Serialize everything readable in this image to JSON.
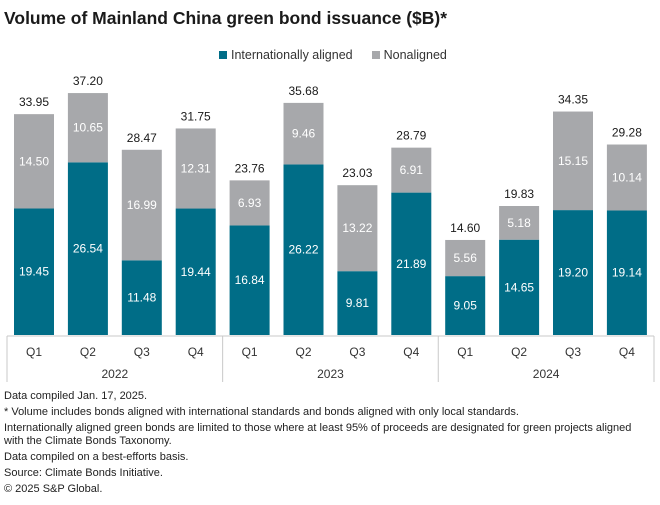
{
  "colors": {
    "aligned": "#006d87",
    "nonaligned": "#a7a8ab",
    "axis": "#c8c8c8",
    "label_on_bar": "#ffffff",
    "total_label": "#1a1a1a"
  },
  "chart_data": {
    "type": "bar",
    "stacked": true,
    "title": "Volume of Mainland China green bond issuance ($B)*",
    "xlabel": "",
    "ylabel": "",
    "ylim": [
      0,
      37.2
    ],
    "grid": false,
    "legend_position": "top-center",
    "categories": [
      "Q1",
      "Q2",
      "Q3",
      "Q4",
      "Q1",
      "Q2",
      "Q3",
      "Q4",
      "Q1",
      "Q2",
      "Q3",
      "Q4"
    ],
    "groups": [
      {
        "label": "2022",
        "categories": [
          "Q1",
          "Q2",
          "Q3",
          "Q4"
        ]
      },
      {
        "label": "2023",
        "categories": [
          "Q1",
          "Q2",
          "Q3",
          "Q4"
        ]
      },
      {
        "label": "2024",
        "categories": [
          "Q1",
          "Q2",
          "Q3",
          "Q4"
        ]
      }
    ],
    "series": [
      {
        "name": "Internationally aligned",
        "color": "#006d87",
        "values": [
          19.45,
          26.54,
          11.48,
          19.44,
          16.84,
          26.22,
          9.81,
          21.89,
          9.05,
          14.65,
          19.2,
          19.14
        ]
      },
      {
        "name": "Nonaligned",
        "color": "#a7a8ab",
        "values": [
          14.5,
          10.65,
          16.99,
          12.31,
          6.93,
          9.46,
          13.22,
          6.91,
          5.56,
          5.18,
          15.15,
          10.14
        ]
      }
    ],
    "totals": [
      33.95,
      37.2,
      28.47,
      31.75,
      23.76,
      35.68,
      23.03,
      28.79,
      14.6,
      19.83,
      34.35,
      29.28
    ]
  },
  "legend": {
    "items": [
      {
        "label": "Internationally aligned",
        "color": "#006d87"
      },
      {
        "label": "Nonaligned",
        "color": "#a7a8ab"
      }
    ]
  },
  "footnotes": [
    "Data compiled Jan. 17, 2025.",
    "* Volume includes bonds aligned with international standards and bonds aligned with only local standards.",
    "Internationally aligned green bonds are limited to those where at least 95% of proceeds are designated for green projects aligned with the Climate Bonds Taxonomy.",
    "Data compiled on a best-efforts basis.",
    "Source: Climate Bonds Initiative.",
    "© 2025 S&P Global."
  ]
}
